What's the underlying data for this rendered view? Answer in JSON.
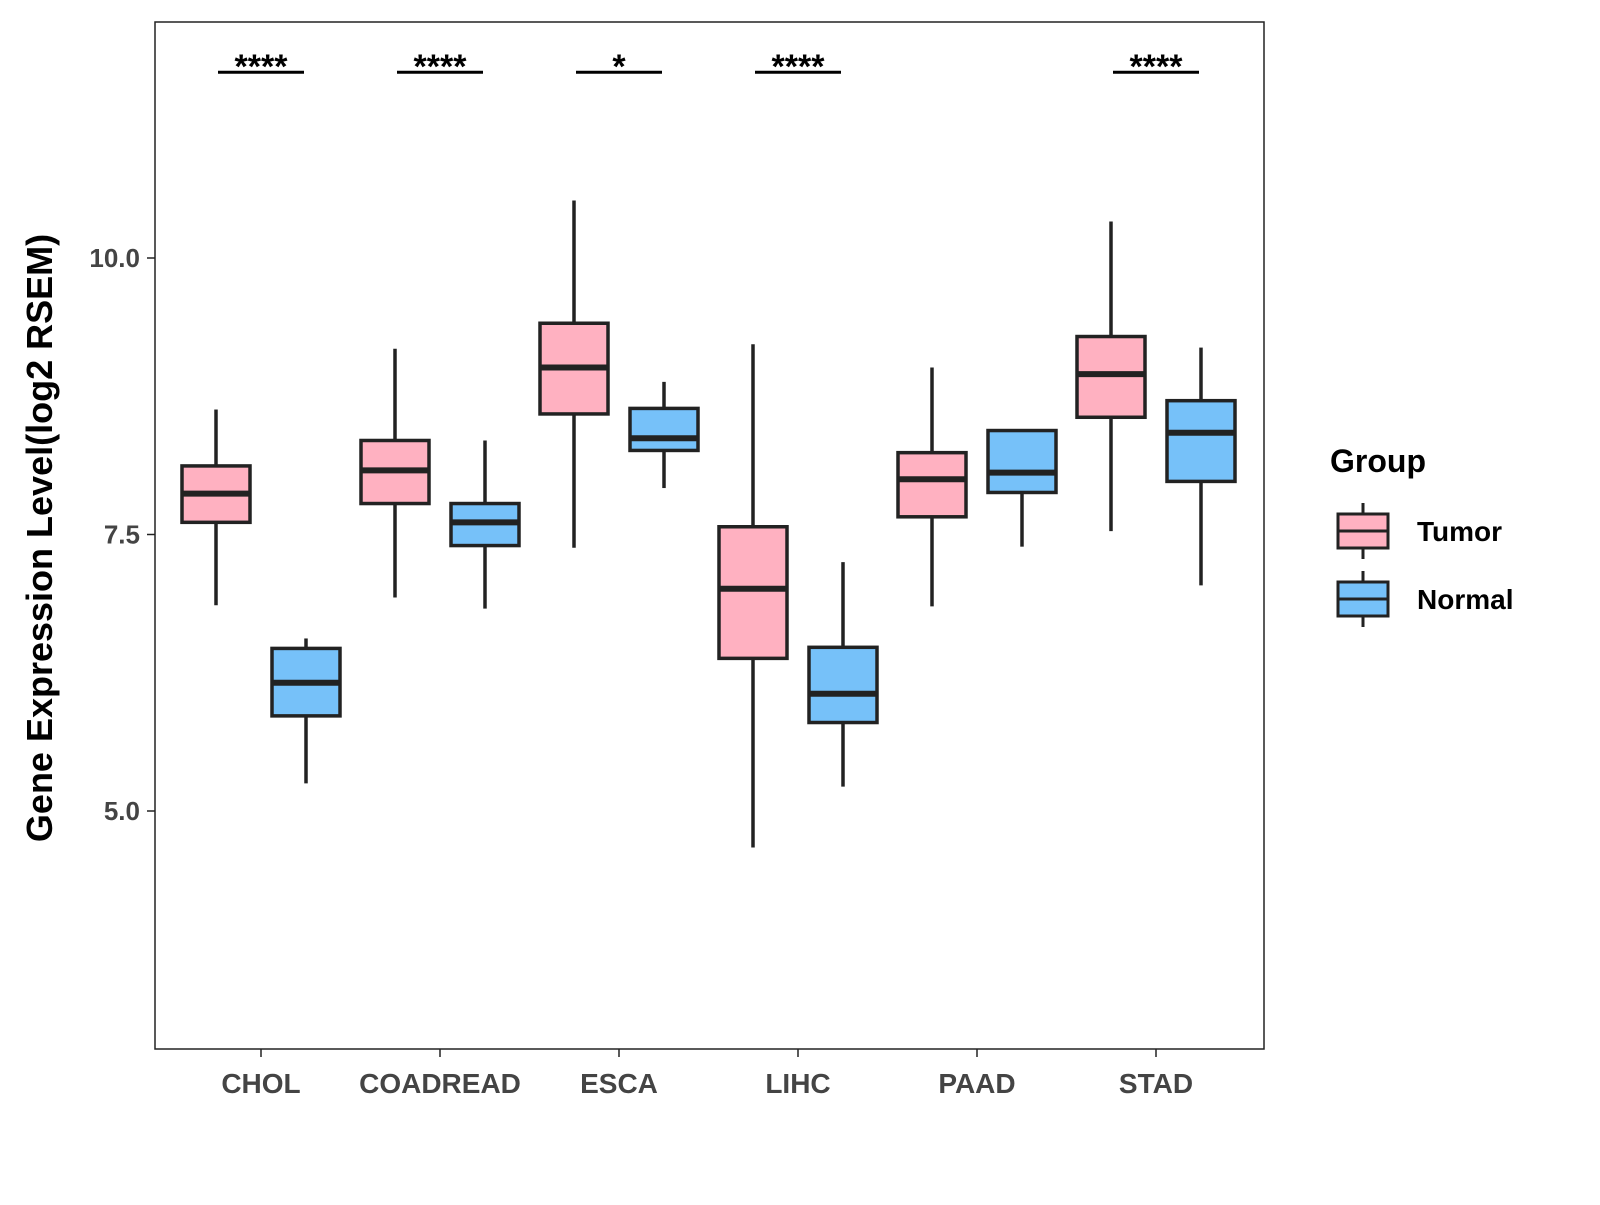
{
  "chart_data": {
    "type": "boxplot",
    "title": "",
    "xlabel": "",
    "ylabel": "Gene Expression Level(log2 RSEM)",
    "ylim": [
      2.85,
      12.13
    ],
    "yticks": [
      5.0,
      7.5,
      10.0
    ],
    "ytick_labels": [
      "5.0",
      "7.5",
      "10.0"
    ],
    "categories": [
      "CHOL",
      "COADREAD",
      "ESCA",
      "LIHC",
      "PAAD",
      "STAD"
    ],
    "grid": false,
    "legend": {
      "title": "Group",
      "position": "right",
      "entries": [
        "Tumor",
        "Normal"
      ]
    },
    "colors": {
      "Tumor": "#FFB1C1",
      "Normal": "#76C1F9"
    },
    "series": [
      {
        "name": "Tumor",
        "boxes": [
          {
            "min": 6.86,
            "q1": 7.61,
            "median": 7.87,
            "q3": 8.12,
            "max": 8.63
          },
          {
            "min": 6.93,
            "q1": 7.78,
            "median": 8.08,
            "q3": 8.35,
            "max": 9.18
          },
          {
            "min": 7.38,
            "q1": 8.59,
            "median": 9.01,
            "q3": 9.41,
            "max": 10.52
          },
          {
            "min": 4.67,
            "q1": 6.38,
            "median": 7.01,
            "q3": 7.57,
            "max": 9.22
          },
          {
            "min": 6.85,
            "q1": 7.66,
            "median": 8.0,
            "q3": 8.24,
            "max": 9.01
          },
          {
            "min": 7.53,
            "q1": 8.56,
            "median": 8.95,
            "q3": 9.29,
            "max": 10.33
          }
        ]
      },
      {
        "name": "Normal",
        "boxes": [
          {
            "min": 5.25,
            "q1": 5.86,
            "median": 6.16,
            "q3": 6.47,
            "max": 6.56
          },
          {
            "min": 6.83,
            "q1": 7.4,
            "median": 7.61,
            "q3": 7.78,
            "max": 8.35
          },
          {
            "min": 7.92,
            "q1": 8.26,
            "median": 8.37,
            "q3": 8.64,
            "max": 8.88
          },
          {
            "min": 5.22,
            "q1": 5.8,
            "median": 6.06,
            "q3": 6.48,
            "max": 7.25
          },
          {
            "min": 7.39,
            "q1": 7.88,
            "median": 8.06,
            "q3": 8.44,
            "max": 8.44
          },
          {
            "min": 7.04,
            "q1": 7.98,
            "median": 8.42,
            "q3": 8.71,
            "max": 9.19
          }
        ]
      }
    ],
    "significance": {
      "y": 11.68,
      "labels": [
        "****",
        "****",
        "*",
        "****",
        "",
        "****"
      ]
    }
  }
}
